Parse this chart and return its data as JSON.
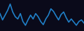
{
  "values": [
    55,
    35,
    50,
    65,
    85,
    60,
    45,
    38,
    55,
    30,
    18,
    35,
    50,
    38,
    55,
    45,
    30,
    20,
    38,
    50,
    70,
    62,
    48,
    35,
    52,
    60,
    42,
    28,
    38,
    28,
    18,
    30,
    35,
    25
  ],
  "line_color": "#2080c8",
  "bg_color": "#0a0a1a",
  "linewidth": 1.2
}
